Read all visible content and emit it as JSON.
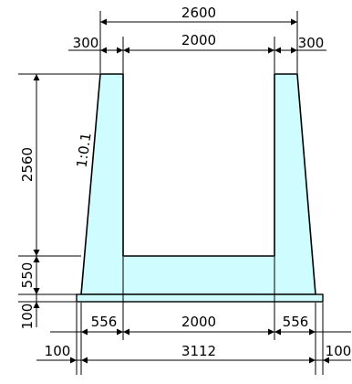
{
  "colors": {
    "fill": "#cffdff",
    "line": "#000000"
  },
  "dims": {
    "top_total": "2600",
    "top_left": "300",
    "top_inner": "2000",
    "top_right": "300",
    "left_height": "2560",
    "left_base": "550",
    "left_footing": "100",
    "slope": "1:0.1",
    "bottom_left": "556",
    "bottom_inner": "2000",
    "bottom_right": "556",
    "bottom_total": "3112",
    "bottom_left_offset": "100",
    "bottom_right_offset": "100"
  }
}
